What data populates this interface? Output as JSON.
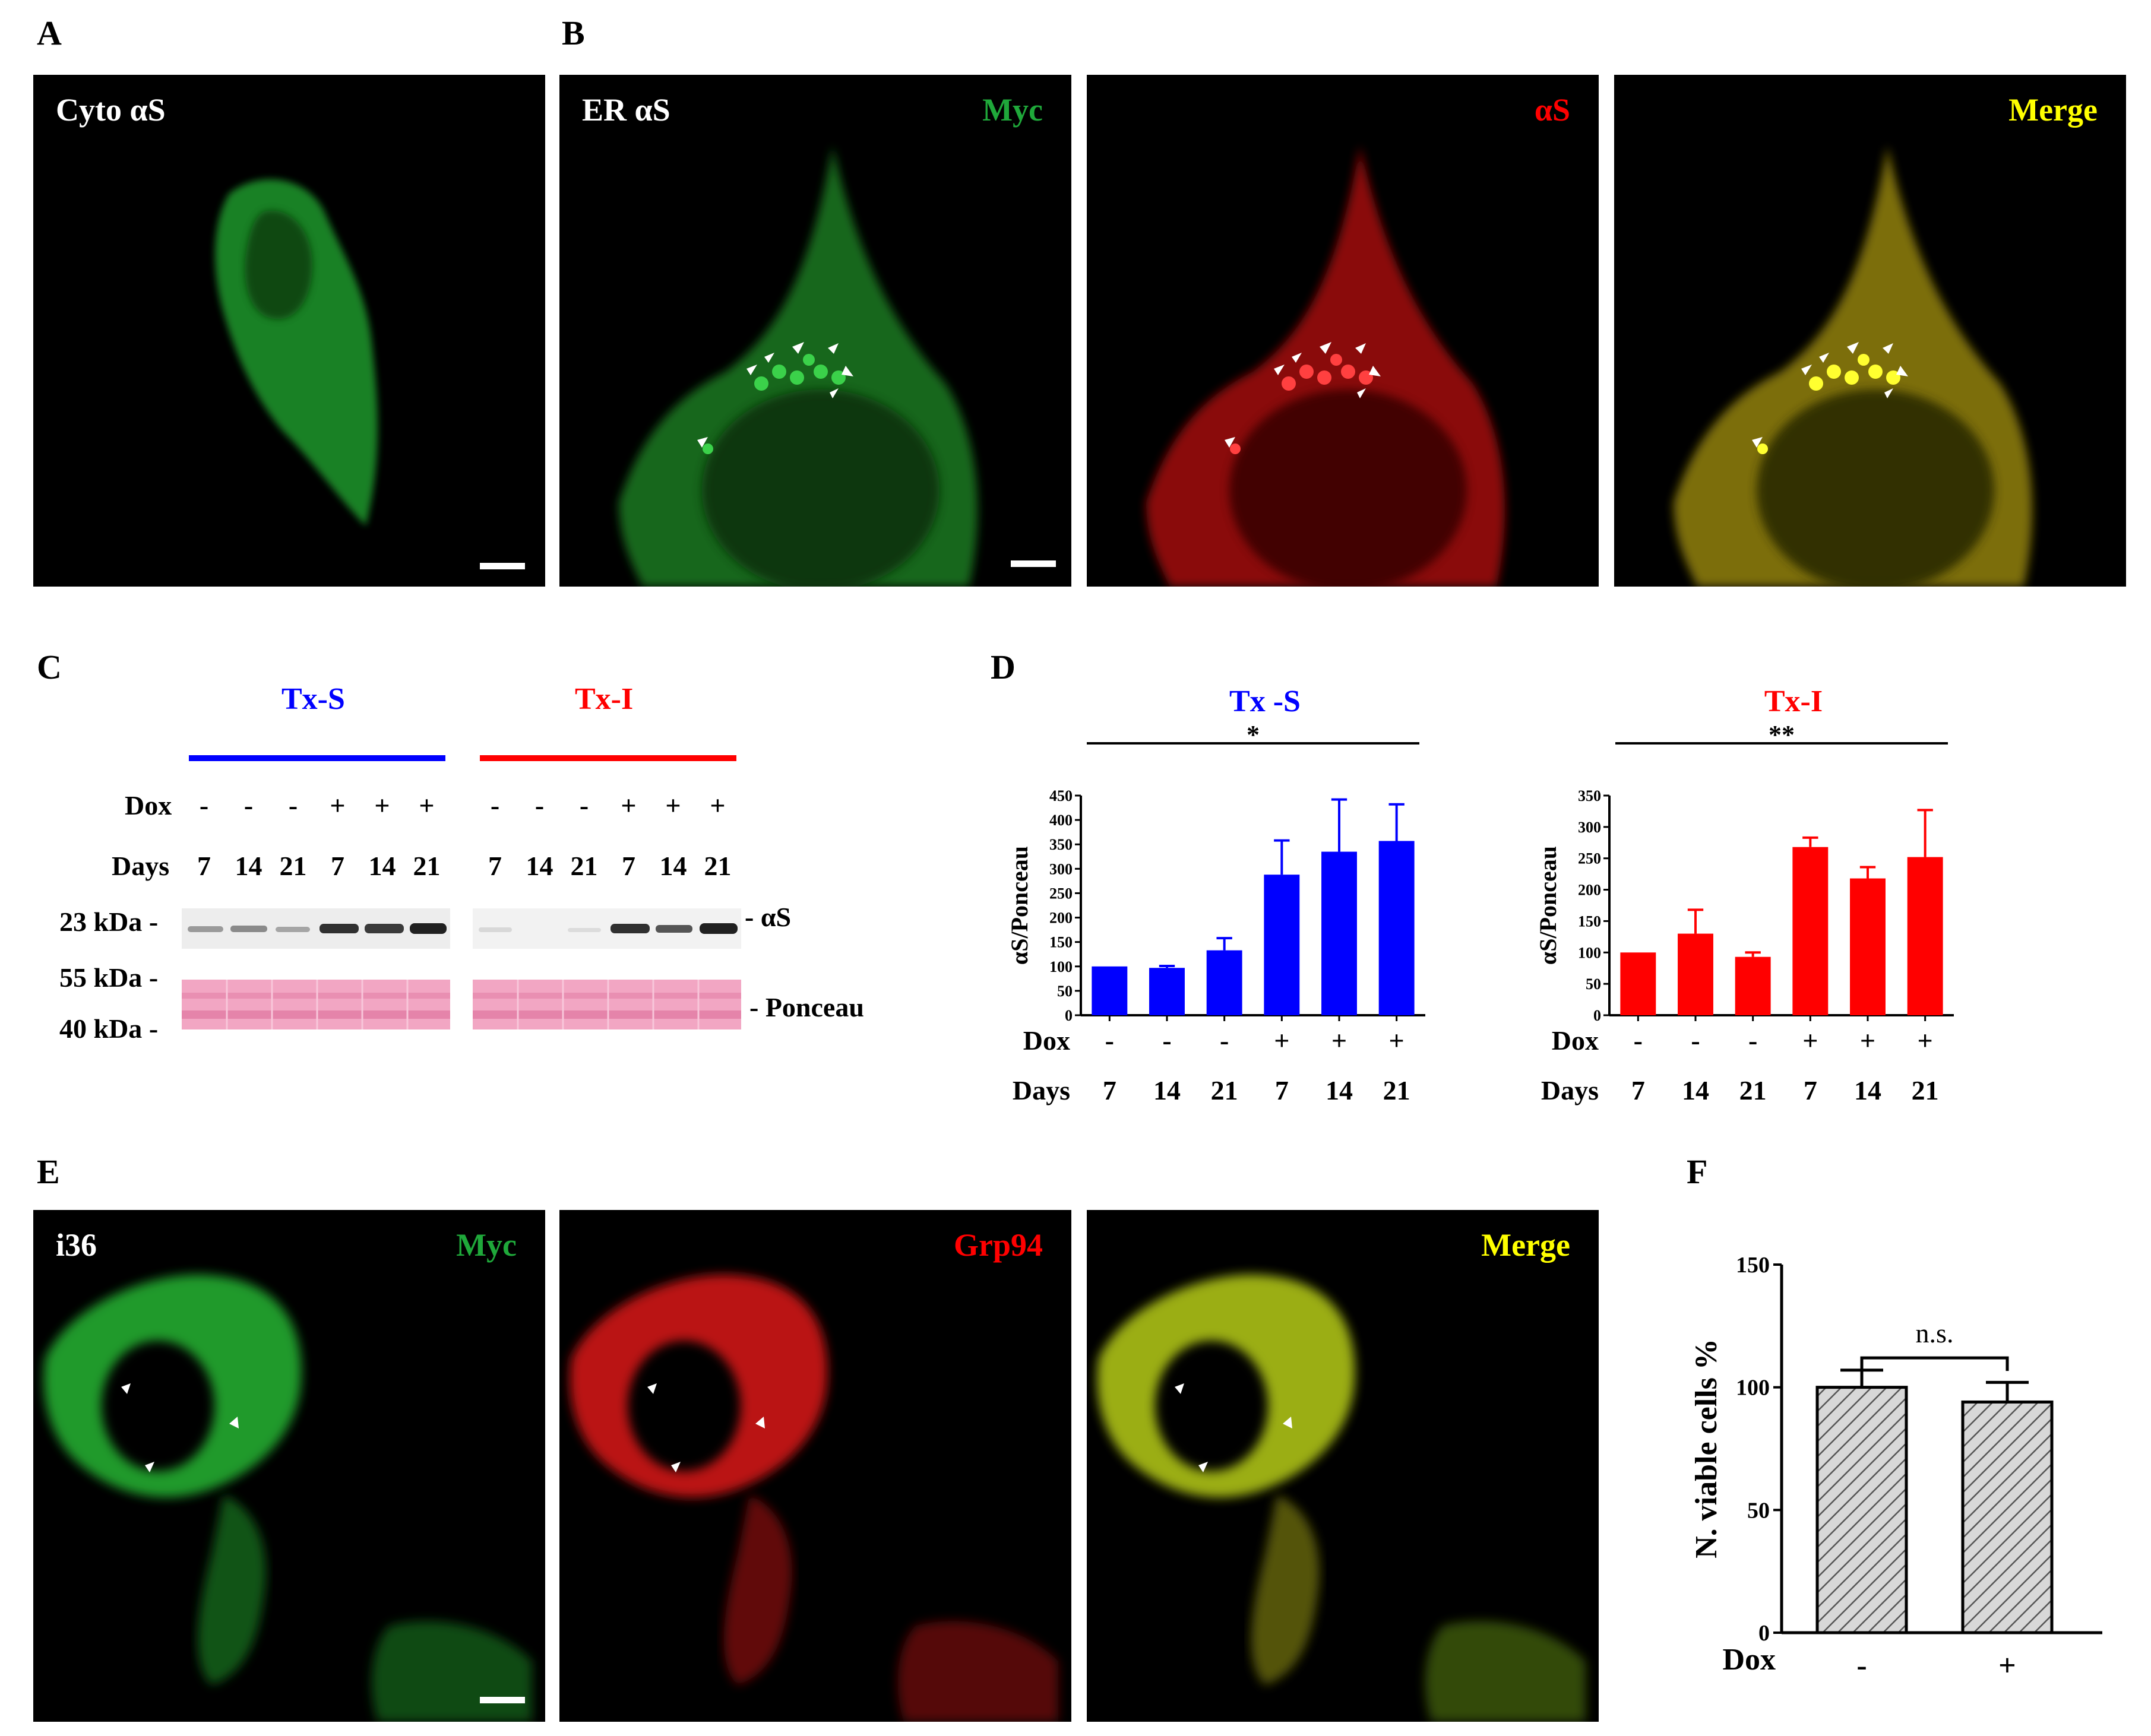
{
  "panels": {
    "A": {
      "letter": "A",
      "label": "Cyto αS"
    },
    "B": {
      "letter": "B",
      "label": "ER αS",
      "channels": [
        "Myc",
        "αS",
        "Merge"
      ]
    },
    "C": {
      "letter": "C",
      "groups": [
        "Tx-S",
        "Tx-I"
      ],
      "dox_label": "Dox",
      "days_label": "Days",
      "dox_values": [
        "-",
        "-",
        "-",
        "+",
        "+",
        "+"
      ],
      "days_values": [
        "7",
        "14",
        "21",
        "7",
        "14",
        "21"
      ],
      "markers": [
        "23 kDa",
        "55 kDa",
        "40 kDa"
      ],
      "band_labels": [
        "- αS",
        "- Ponceau"
      ]
    },
    "D": {
      "letter": "D"
    },
    "E": {
      "letter": "E",
      "label": "i36",
      "channels": [
        "Myc",
        "Grp94",
        "Merge"
      ]
    },
    "F": {
      "letter": "F"
    }
  },
  "colors": {
    "blue": "#0000ff",
    "red": "#ff0000",
    "green": "#1fa83a",
    "yellow": "#ffff00",
    "ponceau": "#f2a6c3"
  },
  "chart_data": [
    {
      "type": "bar",
      "panel": "D",
      "title": "Tx -S",
      "ylabel": "αS/Ponceau",
      "xlabel_rows": [
        {
          "label": "Dox",
          "values": [
            "-",
            "-",
            "-",
            "+",
            "+",
            "+"
          ]
        },
        {
          "label": "Days",
          "values": [
            "7",
            "14",
            "21",
            "7",
            "14",
            "21"
          ]
        }
      ],
      "categories": [
        "7",
        "14",
        "21",
        "7",
        "14",
        "21"
      ],
      "values": [
        100,
        97,
        133,
        288,
        335,
        357
      ],
      "errors": [
        0,
        4,
        25,
        70,
        107,
        75
      ],
      "ylim": [
        0,
        450
      ],
      "yticks": [
        0,
        50,
        100,
        150,
        200,
        250,
        300,
        350,
        400,
        450
      ],
      "bar_color": "#0000ff",
      "significance": "*"
    },
    {
      "type": "bar",
      "panel": "D",
      "title": "Tx-I",
      "ylabel": "αS/Ponceau",
      "xlabel_rows": [
        {
          "label": "Dox",
          "values": [
            "-",
            "-",
            "-",
            "+",
            "+",
            "+"
          ]
        },
        {
          "label": "Days",
          "values": [
            "7",
            "14",
            "21",
            "7",
            "14",
            "21"
          ]
        }
      ],
      "categories": [
        "7",
        "14",
        "21",
        "7",
        "14",
        "21"
      ],
      "values": [
        100,
        130,
        93,
        268,
        218,
        252
      ],
      "errors": [
        0,
        38,
        7,
        15,
        18,
        75
      ],
      "ylim": [
        0,
        350
      ],
      "yticks": [
        0,
        50,
        100,
        150,
        200,
        250,
        300,
        350
      ],
      "bar_color": "#ff0000",
      "significance": "**"
    },
    {
      "type": "bar",
      "panel": "F",
      "title": "",
      "ylabel": "N. viable cells %",
      "xlabel": "Dox",
      "categories": [
        "-",
        "+"
      ],
      "values": [
        100,
        94
      ],
      "errors": [
        7,
        8
      ],
      "ylim": [
        0,
        150
      ],
      "yticks": [
        0,
        50,
        100,
        150
      ],
      "bar_fill": "hatched-gray",
      "significance": "n.s."
    }
  ]
}
